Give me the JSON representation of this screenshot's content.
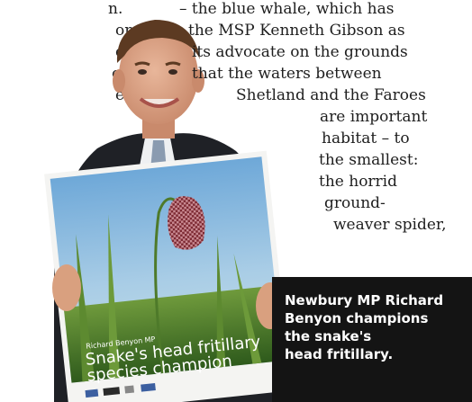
{
  "article": {
    "left_column": [
      "n.",
      "on",
      "ed",
      "ooo",
      "ed"
    ],
    "right_column": [
      "– the blue whale, which has",
      "the MSP Kenneth Gibson as",
      "its advocate on the grounds",
      "that the waters between",
      "Shetland and the Faroes",
      "are important",
      "habitat – to",
      "the smallest:",
      "the horrid",
      "ground-",
      "weaver spider,"
    ]
  },
  "poster": {
    "byline": "Richard Benyon MP",
    "title_line1": "Snake's head fritillary",
    "title_line2": "species champion"
  },
  "caption": {
    "lines": [
      "Newbury MP Richard",
      "Benyon champions",
      "the snake's",
      "head fritillary."
    ]
  }
}
